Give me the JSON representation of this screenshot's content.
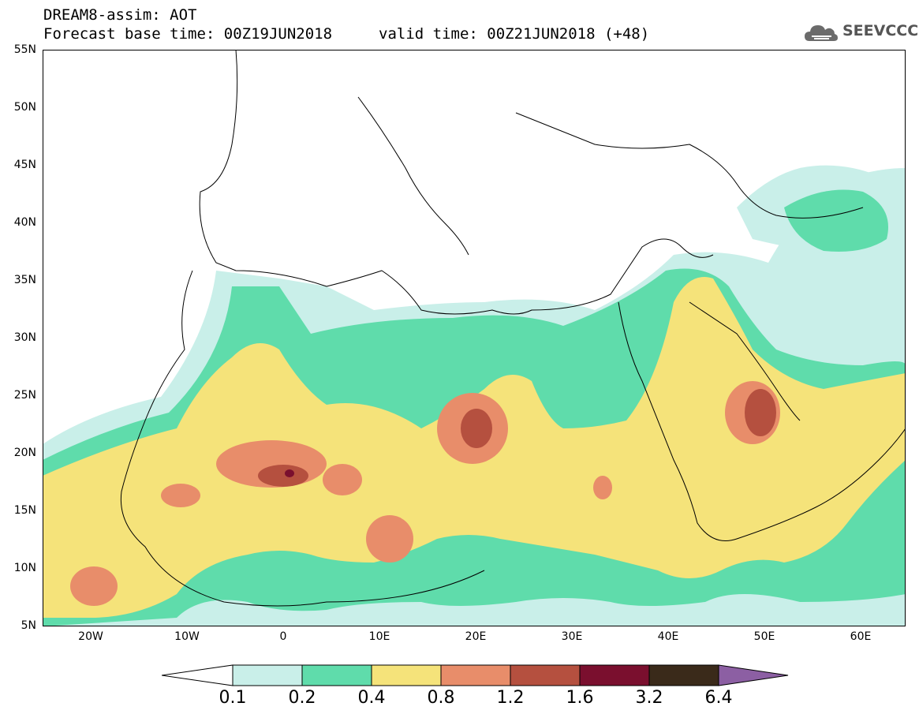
{
  "header": {
    "title": "DREAM8-assim: AOT",
    "base_time": "Forecast base time: 00Z19JUN2018",
    "valid_time": "valid time: 00Z21JUN2018 (+48)",
    "logo_text": "SEEVCCC",
    "logo_icon": "cloud-icon"
  },
  "axes": {
    "lat_labels": [
      "55N",
      "50N",
      "45N",
      "40N",
      "35N",
      "30N",
      "25N",
      "20N",
      "15N",
      "10N",
      "5N"
    ],
    "lon_labels": [
      "20W",
      "10W",
      "0",
      "10E",
      "20E",
      "30E",
      "40E",
      "50E",
      "60E"
    ]
  },
  "colorbar": {
    "labels": [
      "0.1",
      "0.2",
      "0.4",
      "0.8",
      "1.2",
      "1.6",
      "3.2",
      "6.4"
    ],
    "colors": [
      "#ffffff",
      "#c9efe9",
      "#5fdcab",
      "#f5e37a",
      "#e88d6a",
      "#b5503f",
      "#7a0f2e",
      "#3a2a1a",
      "#8c5fa3"
    ]
  },
  "map_colors": {
    "c1": "#c9efe9",
    "c2": "#5fdcab",
    "c3": "#f5e37a",
    "c4": "#e88d6a",
    "c5": "#b5503f",
    "c6": "#7a0f2e"
  }
}
